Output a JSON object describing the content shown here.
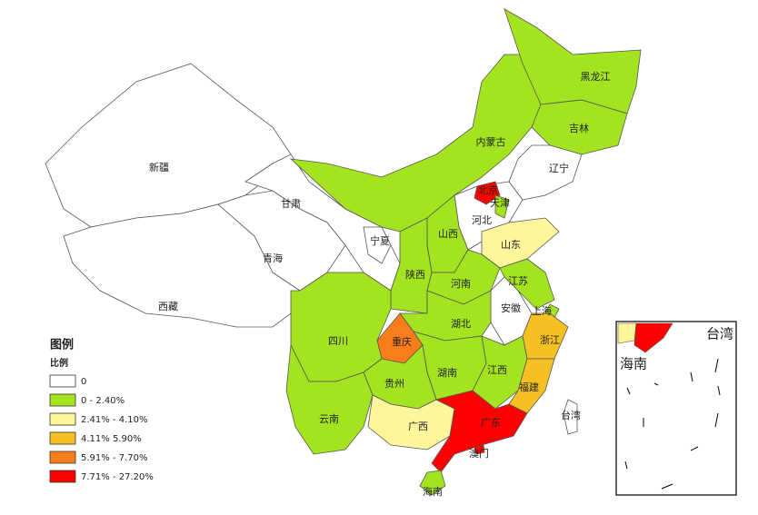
{
  "legend": {
    "title": "图例",
    "subtitle": "比例",
    "items": [
      {
        "label": "0",
        "color": "#ffffff"
      },
      {
        "label": "0 - 2.40%",
        "color": "#a3e31f"
      },
      {
        "label": "2.41% - 4.10%",
        "color": "#fff59b"
      },
      {
        "label": "4.11%   5.90%",
        "color": "#f6c022"
      },
      {
        "label": "5.91% - 7.70%",
        "color": "#fa7d1c"
      },
      {
        "label": "7.71% - 27.20%",
        "color": "#ff0000"
      }
    ]
  },
  "regions": [
    {
      "name": "新疆",
      "color": "#ffffff"
    },
    {
      "name": "西藏",
      "color": "#ffffff"
    },
    {
      "name": "青海",
      "color": "#ffffff"
    },
    {
      "name": "甘肃",
      "color": "#ffffff"
    },
    {
      "name": "内蒙古",
      "color": "#a3e31f"
    },
    {
      "name": "黑龙江",
      "color": "#a3e31f"
    },
    {
      "name": "吉林",
      "color": "#a3e31f"
    },
    {
      "name": "辽宁",
      "color": "#ffffff"
    },
    {
      "name": "河北",
      "color": "#ffffff"
    },
    {
      "name": "北京",
      "color": "#ff0000"
    },
    {
      "name": "天津",
      "color": "#a3e31f"
    },
    {
      "name": "山西",
      "color": "#a3e31f"
    },
    {
      "name": "宁夏",
      "color": "#ffffff"
    },
    {
      "name": "陕西",
      "color": "#a3e31f"
    },
    {
      "name": "山东",
      "color": "#fff59b"
    },
    {
      "name": "河南",
      "color": "#a3e31f"
    },
    {
      "name": "江苏",
      "color": "#a3e31f"
    },
    {
      "name": "安徽",
      "color": "#ffffff"
    },
    {
      "name": "上海",
      "color": "#a3e31f"
    },
    {
      "name": "湖北",
      "color": "#a3e31f"
    },
    {
      "name": "重庆",
      "color": "#fa7d1c"
    },
    {
      "name": "四川",
      "color": "#a3e31f"
    },
    {
      "name": "浙江",
      "color": "#f6c022"
    },
    {
      "name": "湖南",
      "color": "#a3e31f"
    },
    {
      "name": "江西",
      "color": "#a3e31f"
    },
    {
      "name": "福建",
      "color": "#f6c022"
    },
    {
      "name": "贵州",
      "color": "#a3e31f"
    },
    {
      "name": "云南",
      "color": "#a3e31f"
    },
    {
      "name": "广西",
      "color": "#fff59b"
    },
    {
      "name": "广东",
      "color": "#ff0000"
    },
    {
      "name": "澳门",
      "color": "#ff0000"
    },
    {
      "name": "海南",
      "color": "#a3e31f"
    },
    {
      "name": "台湾",
      "color": "#ffffff"
    }
  ],
  "inset": {
    "labels": [
      "台湾",
      "海南"
    ]
  }
}
